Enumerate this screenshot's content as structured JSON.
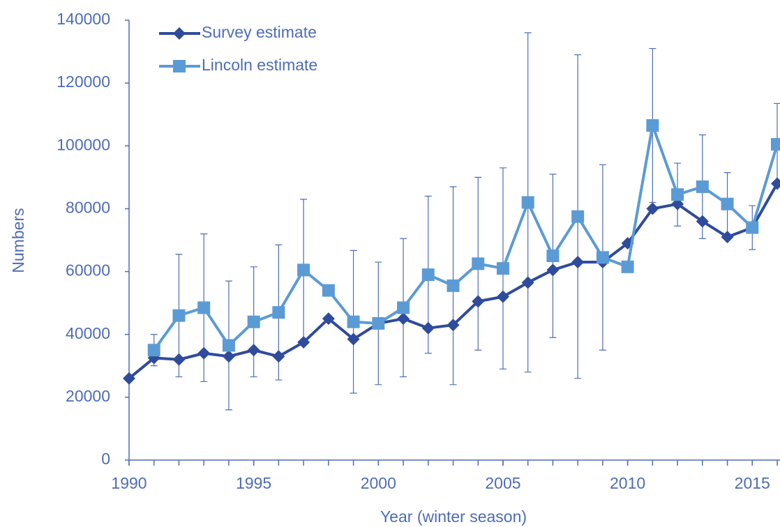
{
  "chart_data": {
    "type": "line",
    "x_label": "Year (winter season)",
    "y_label": "Numbers",
    "x": [
      1990,
      1991,
      1992,
      1993,
      1994,
      1995,
      1996,
      1997,
      1998,
      1999,
      2000,
      2001,
      2002,
      2003,
      2004,
      2005,
      2006,
      2007,
      2008,
      2009,
      2010,
      2011,
      2012,
      2013,
      2014,
      2015,
      2016
    ],
    "series": [
      {
        "name": "Survey estimate",
        "color": "#2f4b9c",
        "marker": "diamond",
        "values": [
          26000,
          32500,
          32000,
          34000,
          33000,
          35000,
          33000,
          37500,
          45000,
          38500,
          43500,
          45000,
          42000,
          43000,
          50500,
          52000,
          56500,
          60500,
          63000,
          63000,
          69000,
          80000,
          81500,
          76000,
          71000,
          74000,
          88000
        ]
      },
      {
        "name": "Lincoln estimate",
        "color": "#5b9bd5",
        "marker": "square",
        "values": [
          null,
          35000,
          46000,
          48500,
          36500,
          44000,
          47000,
          60500,
          54000,
          44000,
          43500,
          48500,
          59000,
          55500,
          62500,
          61000,
          82000,
          65000,
          77500,
          64500,
          61500,
          106500,
          84500,
          87000,
          81500,
          74000,
          100500
        ],
        "errors": [
          null,
          5000,
          19500,
          23500,
          20500,
          17500,
          21500,
          22500,
          null,
          22700,
          19500,
          22000,
          25000,
          31500,
          27500,
          32000,
          54000,
          26000,
          51500,
          29500,
          null,
          24500,
          10000,
          16500,
          10000,
          7000,
          13000
        ]
      }
    ],
    "xlim": [
      1990,
      2016
    ],
    "xticks": [
      1990,
      1995,
      2000,
      2005,
      2010,
      2015
    ],
    "ylim": [
      0,
      140000
    ],
    "yticks": [
      0,
      20000,
      40000,
      60000,
      80000,
      100000,
      120000,
      140000
    ],
    "legend": "top-left"
  }
}
